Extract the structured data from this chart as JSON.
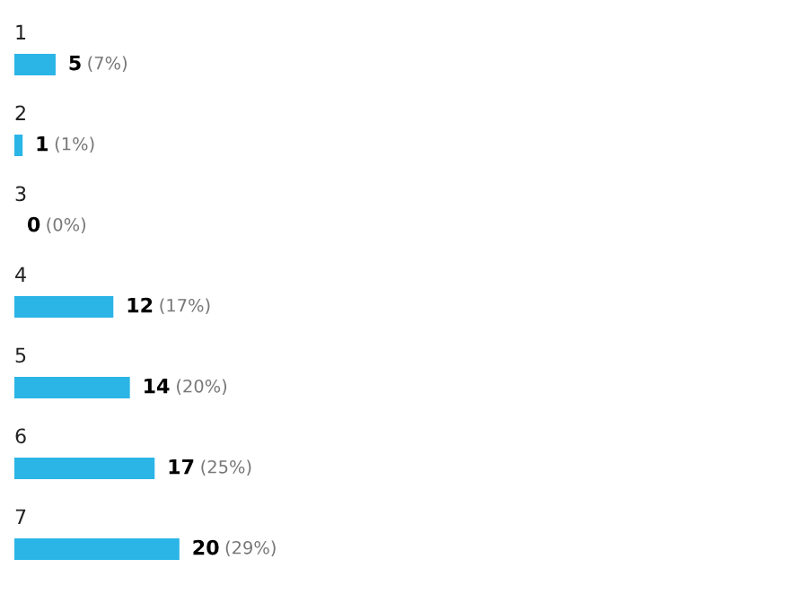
{
  "chart_data": {
    "type": "bar",
    "orientation": "horizontal",
    "categories": [
      "1",
      "2",
      "3",
      "4",
      "5",
      "6",
      "7"
    ],
    "values": [
      5,
      1,
      0,
      12,
      14,
      17,
      20
    ],
    "value_labels": [
      "5 (7%)",
      "1 (1%)",
      "0 (0%)",
      "12 (17%)",
      "14 (20%)",
      "17 (25%)",
      "20 (29%)"
    ],
    "color": "#2bb5e6"
  }
}
